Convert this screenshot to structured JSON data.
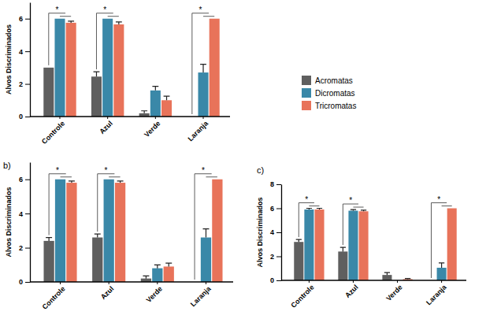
{
  "chart_data": [
    {
      "type": "bar",
      "y_label": "Alvos Discriminados",
      "categories": [
        "Controle",
        "Azul",
        "Verde",
        "Laranja"
      ],
      "ylim": [
        0,
        7
      ],
      "yticks": [
        0,
        2,
        4,
        6
      ],
      "legend": "right",
      "series": [
        {
          "name": "Acromatas",
          "color": "#5f5f5f",
          "values": [
            3.0,
            2.45,
            0.2,
            0
          ],
          "errors": [
            0,
            0.3,
            0.15,
            0
          ]
        },
        {
          "name": "Dicromatas",
          "color": "#3a88a8",
          "values": [
            6.0,
            6.0,
            1.6,
            2.7
          ],
          "errors": [
            0,
            0,
            0.25,
            0.5
          ]
        },
        {
          "name": "Tricromatas",
          "color": "#e8735a",
          "values": [
            5.75,
            5.65,
            1.0,
            6.0
          ],
          "errors": [
            0.1,
            0.15,
            0.25,
            0
          ]
        }
      ],
      "annotations": [
        {
          "text": "*",
          "category": "Controle"
        },
        {
          "text": "*",
          "category": "Azul"
        },
        {
          "text": "*",
          "category": "Laranja"
        }
      ]
    },
    {
      "type": "bar",
      "title": "b)",
      "y_label": "Alvos Discriminados",
      "categories": [
        "Controle",
        "Azul",
        "Verde",
        "Laranja"
      ],
      "ylim": [
        0,
        7
      ],
      "yticks": [
        0,
        2,
        4,
        6
      ],
      "series": [
        {
          "color": "#5f5f5f",
          "values": [
            2.4,
            2.6,
            0.2,
            0
          ],
          "errors": [
            0.2,
            0.2,
            0.15,
            0
          ]
        },
        {
          "color": "#3a88a8",
          "values": [
            6.0,
            6.0,
            0.8,
            2.6
          ],
          "errors": [
            0,
            0,
            0.2,
            0.5
          ]
        },
        {
          "color": "#e8735a",
          "values": [
            5.8,
            5.8,
            0.9,
            6.0
          ],
          "errors": [
            0.1,
            0.1,
            0.2,
            0
          ]
        }
      ],
      "annotations": [
        {
          "text": "*",
          "category": "Controle"
        },
        {
          "text": "*",
          "category": "Azul"
        },
        {
          "text": "*",
          "category": "Laranja"
        }
      ]
    },
    {
      "type": "bar",
      "title": "c)",
      "y_label": "Alvos Discriminados",
      "categories": [
        "Controle",
        "Azul",
        "Verde",
        "Laranja"
      ],
      "ylim": [
        0,
        8
      ],
      "yticks": [
        0,
        2,
        4,
        6,
        8
      ],
      "series": [
        {
          "color": "#5f5f5f",
          "values": [
            3.2,
            2.4,
            0.45,
            0
          ],
          "errors": [
            0.2,
            0.35,
            0.2,
            0
          ]
        },
        {
          "color": "#3a88a8",
          "values": [
            5.9,
            5.8,
            0,
            1.05
          ],
          "errors": [
            0.1,
            0.1,
            0,
            0.4
          ]
        },
        {
          "color": "#e8735a",
          "values": [
            5.9,
            5.75,
            0.1,
            6.0
          ],
          "errors": [
            0.1,
            0.1,
            0.05,
            0
          ]
        }
      ],
      "annotations": [
        {
          "text": "*",
          "category": "Controle"
        },
        {
          "text": "*",
          "category": "Azul"
        },
        {
          "text": "*",
          "category": "Laranja"
        }
      ]
    }
  ]
}
